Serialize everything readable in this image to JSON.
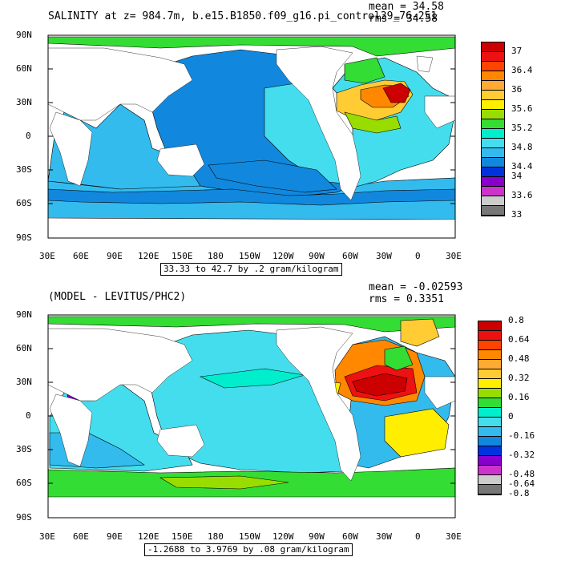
{
  "top": {
    "title": "SALINITY at z= 984.7m, b.e15.B1850.f09_g16.pi_control39_76-251",
    "mean_text": "mean = 34.58",
    "rms_text": "rms = 34.58",
    "caption": "33.33 to 42.7 by .2 gram/kilogram",
    "lat_labels": [
      "90N",
      "60N",
      "30N",
      "0",
      "30S",
      "60S",
      "90S"
    ],
    "lon_labels": [
      "30E",
      "60E",
      "90E",
      "120E",
      "150E",
      "180",
      "150W",
      "120W",
      "90W",
      "60W",
      "30W",
      "0",
      "30E"
    ],
    "colorbar": {
      "colors": [
        "#cc0000",
        "#ee1111",
        "#ff4400",
        "#ff8800",
        "#ffaa33",
        "#ffcc33",
        "#ffee00",
        "#99dd00",
        "#33dd33",
        "#00eecc",
        "#44ddee",
        "#33bbee",
        "#1188dd",
        "#0033dd",
        "#8800cc",
        "#cc33cc",
        "#cccccc",
        "#777777"
      ],
      "labels": [
        "37",
        "36.4",
        "36",
        "35.6",
        "35.2",
        "34.8",
        "34.4",
        "34",
        "33.6",
        "33"
      ],
      "label_cells": [
        1,
        3,
        5,
        7,
        9,
        11,
        13,
        14,
        16,
        18
      ]
    }
  },
  "bottom": {
    "title": "(MODEL - LEVITUS/PHC2)",
    "mean_text": "mean = -0.02593",
    "rms_text": "rms = 0.3351",
    "caption": "-1.2688 to 3.9769 by .08 gram/kilogram",
    "lat_labels": [
      "90N",
      "60N",
      "30N",
      "0",
      "30S",
      "60S",
      "90S"
    ],
    "lon_labels": [
      "30E",
      "60E",
      "90E",
      "120E",
      "150E",
      "180",
      "150W",
      "120W",
      "90W",
      "60W",
      "30W",
      "0",
      "30E"
    ],
    "colorbar": {
      "colors": [
        "#cc0000",
        "#ee1111",
        "#ff4400",
        "#ff8800",
        "#ffaa33",
        "#ffcc33",
        "#ffee00",
        "#99dd00",
        "#33dd33",
        "#00eecc",
        "#44ddee",
        "#33bbee",
        "#1188dd",
        "#0033dd",
        "#8800cc",
        "#cc33cc",
        "#cccccc",
        "#777777"
      ],
      "labels": [
        "0.8",
        "0.64",
        "0.48",
        "0.32",
        "0.16",
        "0",
        "-0.16",
        "-0.32",
        "-0.48",
        "-0.64",
        "-0.8"
      ],
      "label_cells": [
        0,
        2,
        4,
        6,
        8,
        10,
        12,
        14,
        16,
        17,
        18
      ]
    }
  },
  "colors": {
    "land": "#ffffff",
    "frame": "#000000"
  }
}
